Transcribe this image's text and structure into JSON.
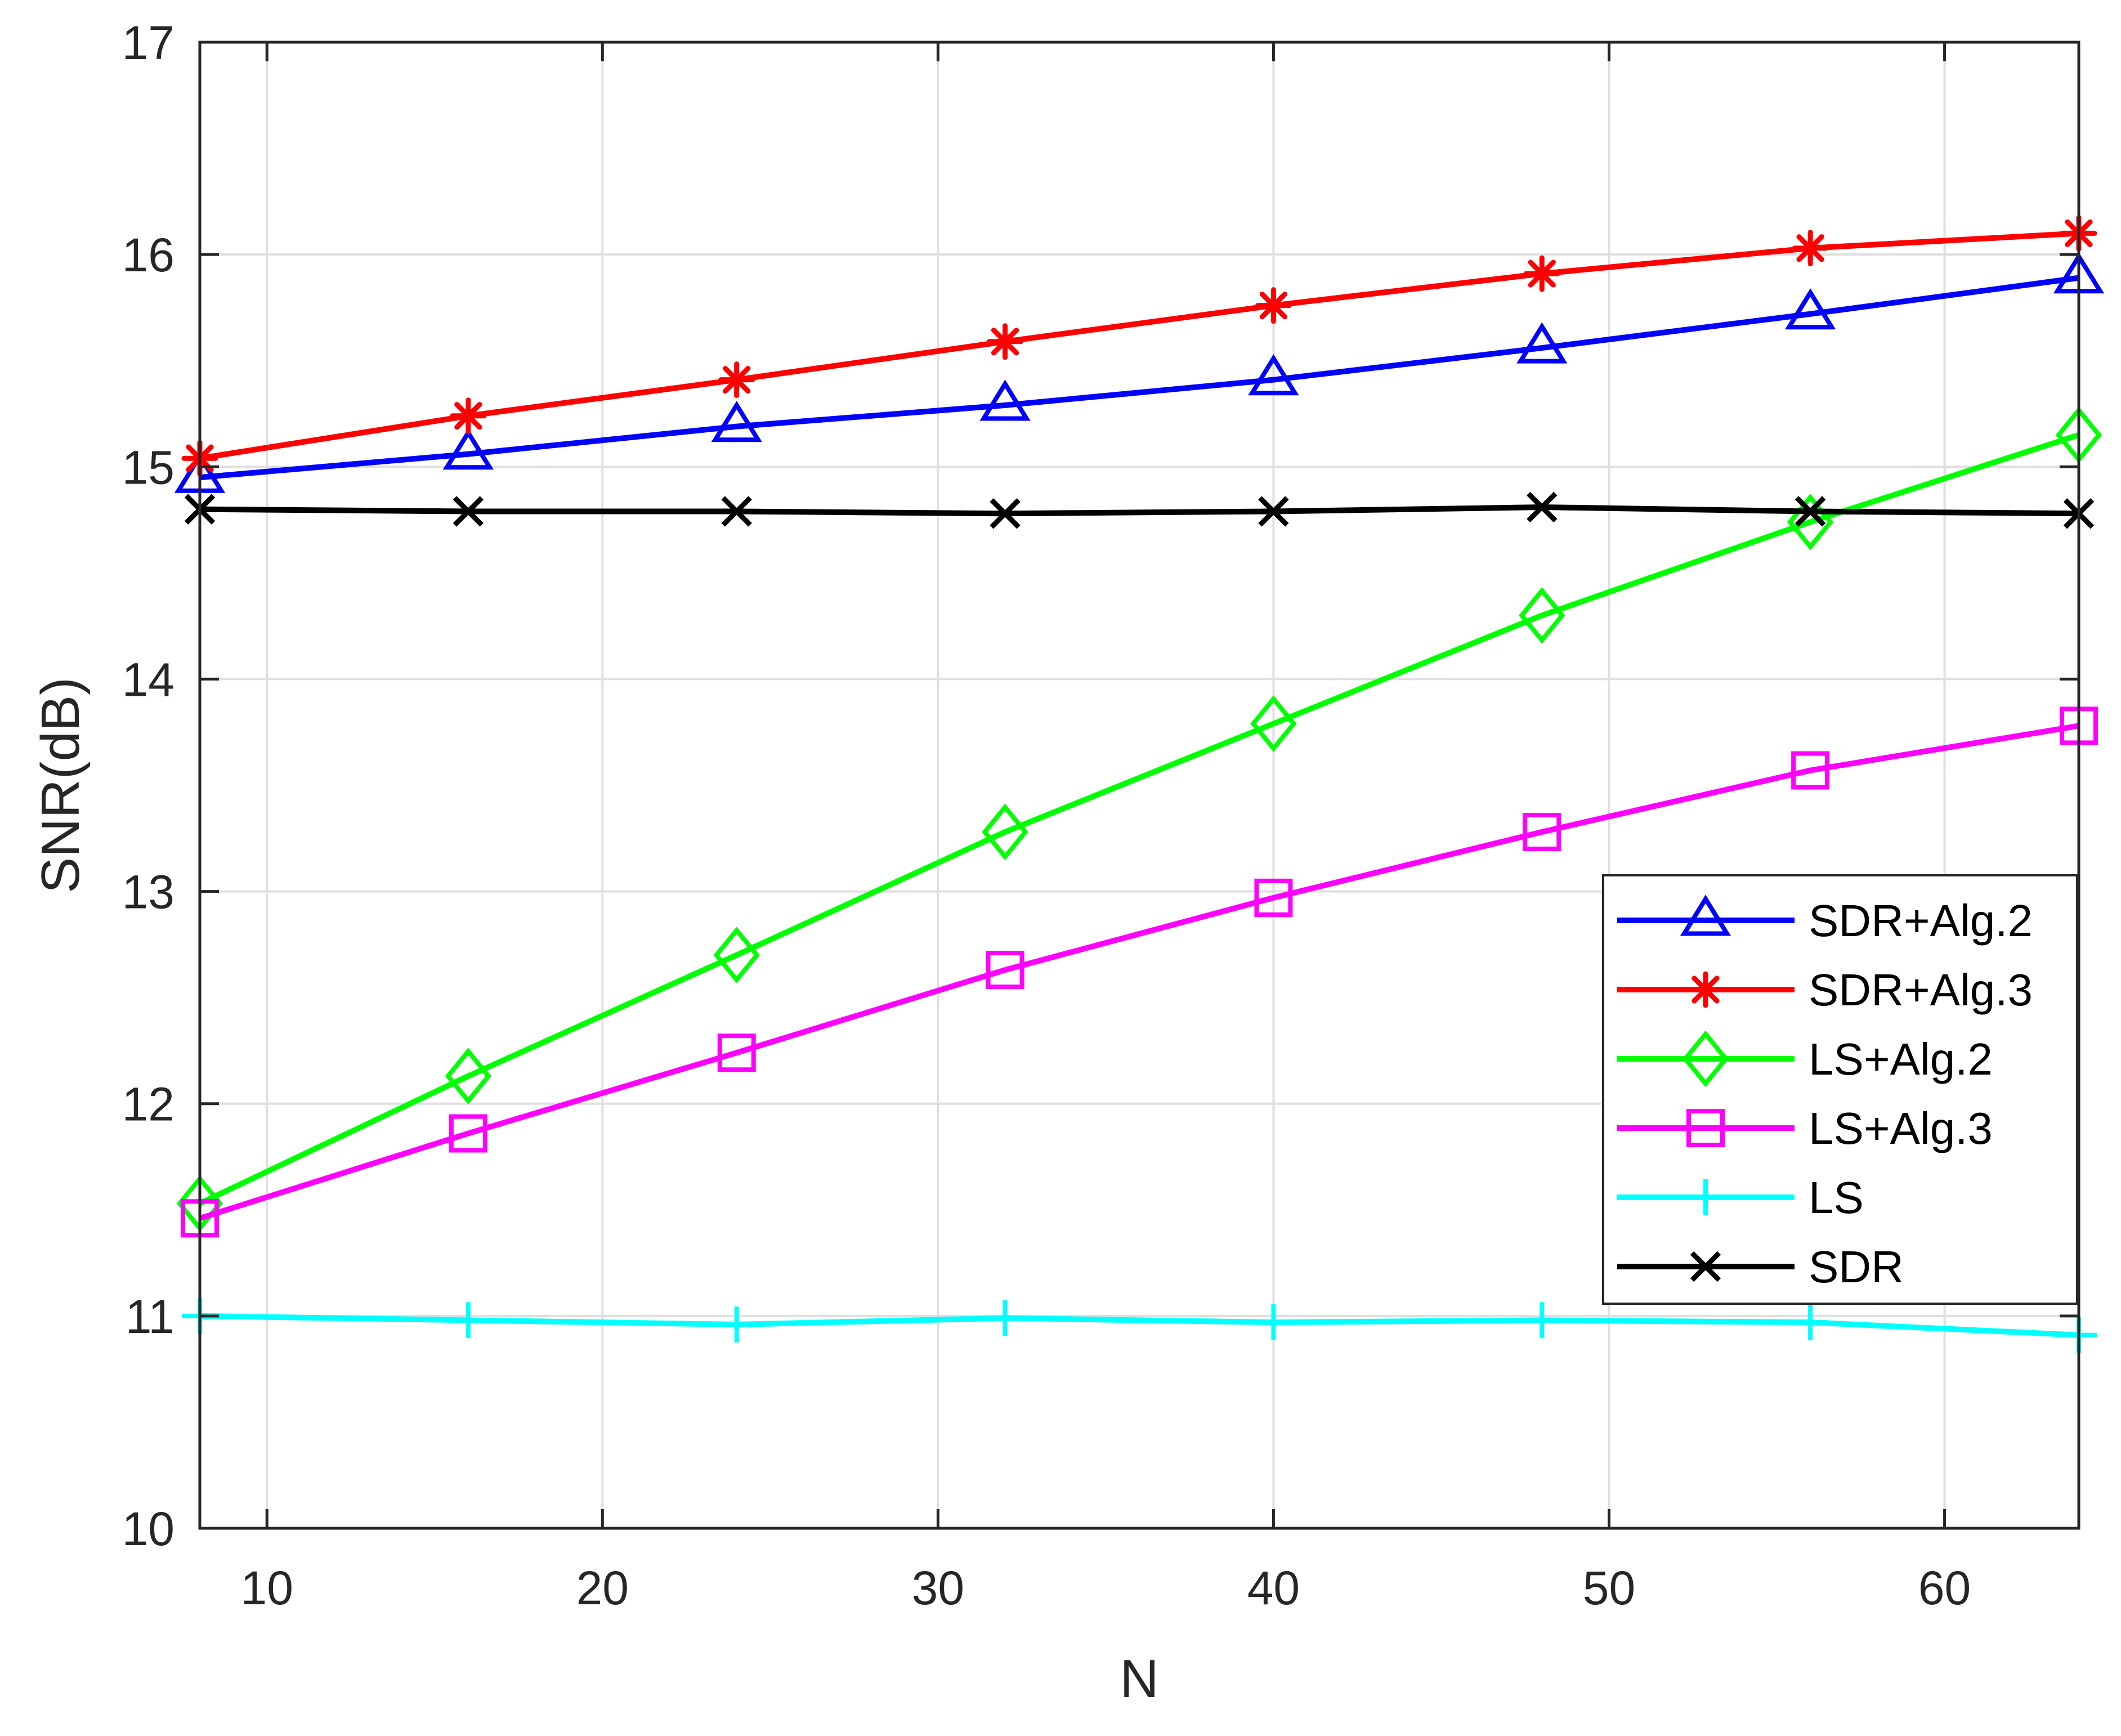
{
  "chart_data": {
    "type": "line",
    "title": "",
    "xlabel": "N",
    "ylabel": "SNR(dB)",
    "xlim": [
      8,
      64
    ],
    "ylim": [
      10,
      17
    ],
    "xticks": [
      10,
      20,
      30,
      40,
      50,
      60
    ],
    "xtick_labels": [
      "10",
      "20",
      "30",
      "40",
      "50",
      "60"
    ],
    "yticks": [
      10,
      11,
      12,
      13,
      14,
      15,
      16,
      17
    ],
    "ytick_labels": [
      "10",
      "11",
      "12",
      "13",
      "14",
      "15",
      "16",
      "17"
    ],
    "grid": true,
    "legend_position": "right",
    "x": [
      8,
      16,
      24,
      32,
      40,
      48,
      56,
      64
    ],
    "series": [
      {
        "name": "SDR+Alg.2",
        "color": "#0000ff",
        "marker": "triangle",
        "values": [
          14.95,
          15.06,
          15.19,
          15.29,
          15.41,
          15.56,
          15.72,
          15.89
        ]
      },
      {
        "name": "SDR+Alg.3",
        "color": "#ff0000",
        "marker": "asterisk",
        "values": [
          15.04,
          15.24,
          15.41,
          15.59,
          15.76,
          15.91,
          16.03,
          16.1
        ]
      },
      {
        "name": "LS+Alg.2",
        "color": "#00ff00",
        "marker": "diamond",
        "values": [
          11.53,
          12.13,
          12.7,
          13.28,
          13.79,
          14.3,
          14.74,
          15.15
        ]
      },
      {
        "name": "LS+Alg.3",
        "color": "#ff00ff",
        "marker": "square",
        "values": [
          11.46,
          11.86,
          12.24,
          12.63,
          12.97,
          13.28,
          13.57,
          13.78
        ]
      },
      {
        "name": "LS",
        "color": "#00ffff",
        "marker": "plus",
        "values": [
          11.0,
          10.98,
          10.96,
          10.99,
          10.97,
          10.98,
          10.97,
          10.91
        ]
      },
      {
        "name": "SDR",
        "color": "#000000",
        "marker": "x",
        "values": [
          14.8,
          14.79,
          14.79,
          14.78,
          14.79,
          14.81,
          14.79,
          14.78
        ]
      }
    ]
  }
}
